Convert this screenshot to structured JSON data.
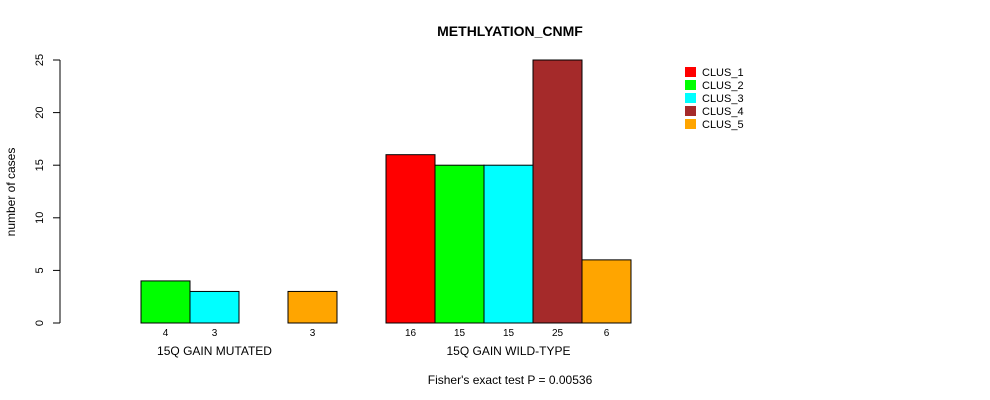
{
  "chart_data": {
    "type": "bar",
    "title": "METHLYATION_CNMF",
    "ylabel": "number of cases",
    "xlabel": "",
    "ylim": [
      0,
      25
    ],
    "yticks": [
      0,
      5,
      10,
      15,
      20,
      25
    ],
    "categories": [
      "15Q GAIN MUTATED",
      "15Q GAIN WILD-TYPE"
    ],
    "series": [
      {
        "name": "CLUS_1",
        "color": "#FF0000",
        "values": [
          0,
          16
        ]
      },
      {
        "name": "CLUS_2",
        "color": "#00FF00",
        "values": [
          4,
          15
        ]
      },
      {
        "name": "CLUS_3",
        "color": "#00FFFF",
        "values": [
          3,
          15
        ]
      },
      {
        "name": "CLUS_4",
        "color": "#A52A2A",
        "values": [
          0,
          25
        ]
      },
      {
        "name": "CLUS_5",
        "color": "#FFA500",
        "values": [
          3,
          6
        ]
      }
    ],
    "count_labels": [
      [
        "",
        "4",
        "3",
        "",
        "3"
      ],
      [
        "16",
        "15",
        "15",
        "25",
        "6"
      ]
    ],
    "legend_position": "top-right",
    "footnote": "Fisher's exact test P = 0.00536"
  }
}
